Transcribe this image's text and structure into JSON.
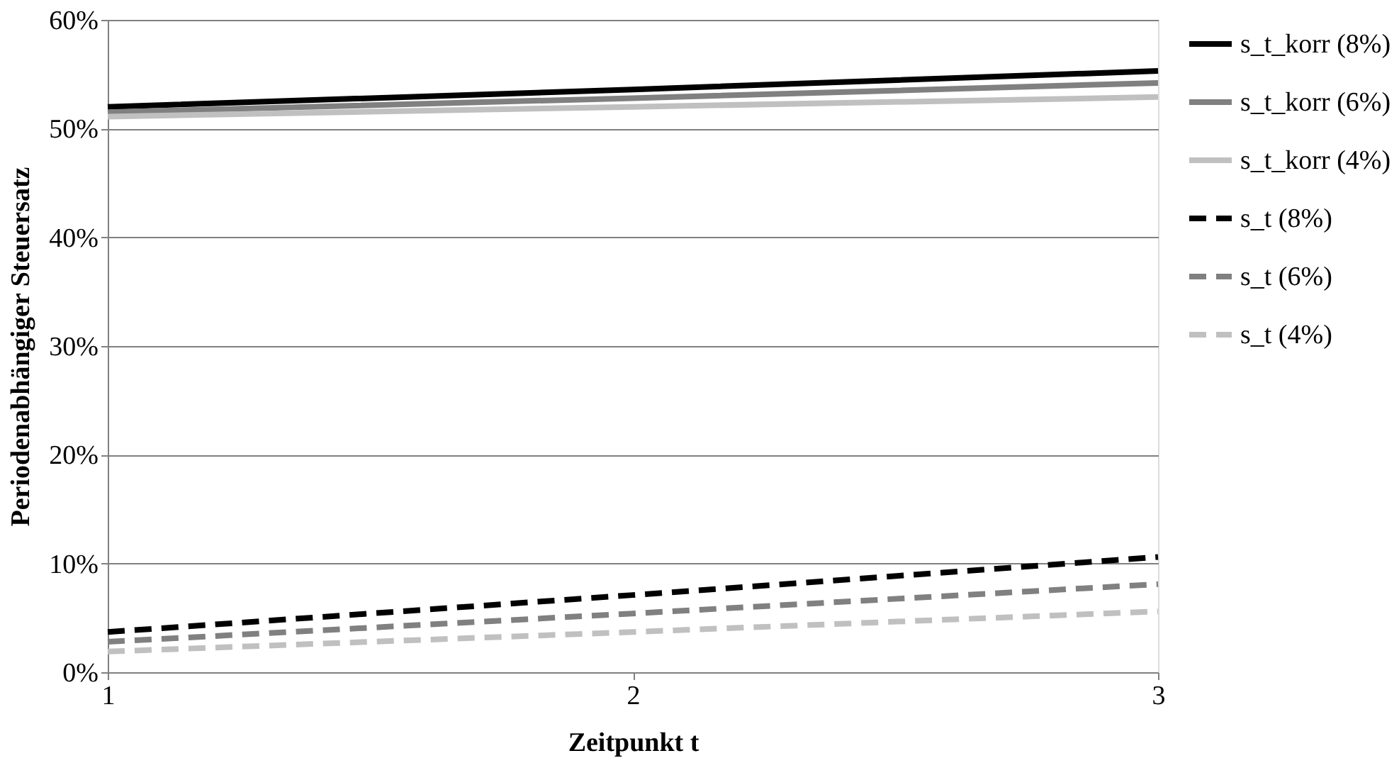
{
  "chart_data": {
    "type": "line",
    "xlabel": "Zeitpunkt t",
    "ylabel": "Periodenabhängiger Steuersatz",
    "x": [
      1,
      2,
      3
    ],
    "xlim": [
      1,
      3
    ],
    "xticks": [
      1,
      2,
      3
    ],
    "ylim": [
      0,
      60
    ],
    "yticks": [
      {
        "value": 0,
        "label": "0%"
      },
      {
        "value": 10,
        "label": "10%"
      },
      {
        "value": 20,
        "label": "20%"
      },
      {
        "value": 30,
        "label": "30%"
      },
      {
        "value": 40,
        "label": "40%"
      },
      {
        "value": 50,
        "label": "50%"
      },
      {
        "value": 60,
        "label": "60%"
      }
    ],
    "grid": "y",
    "legend": "right",
    "marker": "none",
    "series": [
      {
        "name": "s_t_korr (8%)",
        "color": "#000000",
        "line_style": "solid",
        "values": [
          52.0,
          53.6,
          55.3
        ]
      },
      {
        "name": "s_t_korr (6%)",
        "color": "#808080",
        "line_style": "solid",
        "values": [
          51.5,
          52.8,
          54.2
        ]
      },
      {
        "name": "s_t_korr (4%)",
        "color": "#c0c0c0",
        "line_style": "solid",
        "values": [
          51.1,
          52.0,
          52.9
        ]
      },
      {
        "name": "s_t (8%)",
        "color": "#000000",
        "line_style": "dashed",
        "values": [
          3.7,
          7.1,
          10.6
        ]
      },
      {
        "name": "s_t (6%)",
        "color": "#808080",
        "line_style": "dashed",
        "values": [
          2.8,
          5.4,
          8.1
        ]
      },
      {
        "name": "s_t (4%)",
        "color": "#c0c0c0",
        "line_style": "dashed",
        "values": [
          1.9,
          3.7,
          5.6
        ]
      }
    ]
  }
}
